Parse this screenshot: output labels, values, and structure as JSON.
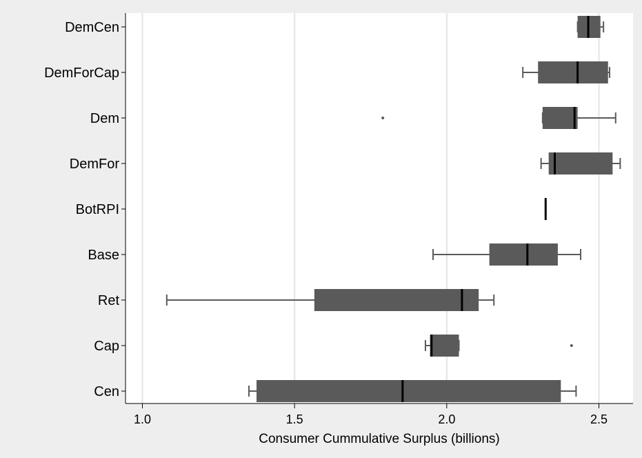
{
  "chart_data": {
    "type": "boxplot",
    "orientation": "horizontal",
    "title": "",
    "xlabel": "Consumer Cummulative Surplus (billions)",
    "ylabel": "",
    "xlim": [
      0.95,
      2.62
    ],
    "xticks": [
      1.0,
      1.5,
      2.0,
      2.5
    ],
    "xtick_labels": [
      "1.0",
      "1.5",
      "2.0",
      "2.5"
    ],
    "grid": "vertical",
    "categories": [
      "DemCen",
      "DemForCap",
      "Dem",
      "DemFor",
      "BotRPI",
      "Base",
      "Ret",
      "Cap",
      "Cen"
    ],
    "boxes": [
      {
        "label": "DemCen",
        "whisker_low": 2.43,
        "q1": 2.43,
        "median": 2.465,
        "q3": 2.505,
        "whisker_high": 2.515,
        "outliers": []
      },
      {
        "label": "DemForCap",
        "whisker_low": 2.25,
        "q1": 2.3,
        "median": 2.43,
        "q3": 2.53,
        "whisker_high": 2.535,
        "outliers": []
      },
      {
        "label": "Dem",
        "whisker_low": 2.315,
        "q1": 2.315,
        "median": 2.42,
        "q3": 2.43,
        "whisker_high": 2.555,
        "outliers": [
          1.79
        ]
      },
      {
        "label": "DemFor",
        "whisker_low": 2.31,
        "q1": 2.335,
        "median": 2.355,
        "q3": 2.545,
        "whisker_high": 2.57,
        "outliers": []
      },
      {
        "label": "BotRPI",
        "whisker_low": 2.325,
        "q1": 2.325,
        "median": 2.325,
        "q3": 2.325,
        "whisker_high": 2.325,
        "outliers": []
      },
      {
        "label": "Base",
        "whisker_low": 1.955,
        "q1": 2.14,
        "median": 2.265,
        "q3": 2.365,
        "whisker_high": 2.44,
        "outliers": []
      },
      {
        "label": "Ret",
        "whisker_low": 1.08,
        "q1": 1.565,
        "median": 2.05,
        "q3": 2.105,
        "whisker_high": 2.155,
        "outliers": []
      },
      {
        "label": "Cap",
        "whisker_low": 1.93,
        "q1": 1.945,
        "median": 1.95,
        "q3": 2.04,
        "whisker_high": 2.04,
        "outliers": [
          2.41
        ]
      },
      {
        "label": "Cen",
        "whisker_low": 1.35,
        "q1": 1.375,
        "median": 1.855,
        "q3": 2.375,
        "whisker_high": 2.425,
        "outliers": []
      }
    ],
    "colors": {
      "background": "#eeeeee",
      "plot_area": "#ffffff",
      "box_fill": "#5a5a5a",
      "whisker": "#5a5a5a",
      "median": "#000000",
      "grid": "#e4e4e4",
      "axis": "#000000"
    }
  }
}
